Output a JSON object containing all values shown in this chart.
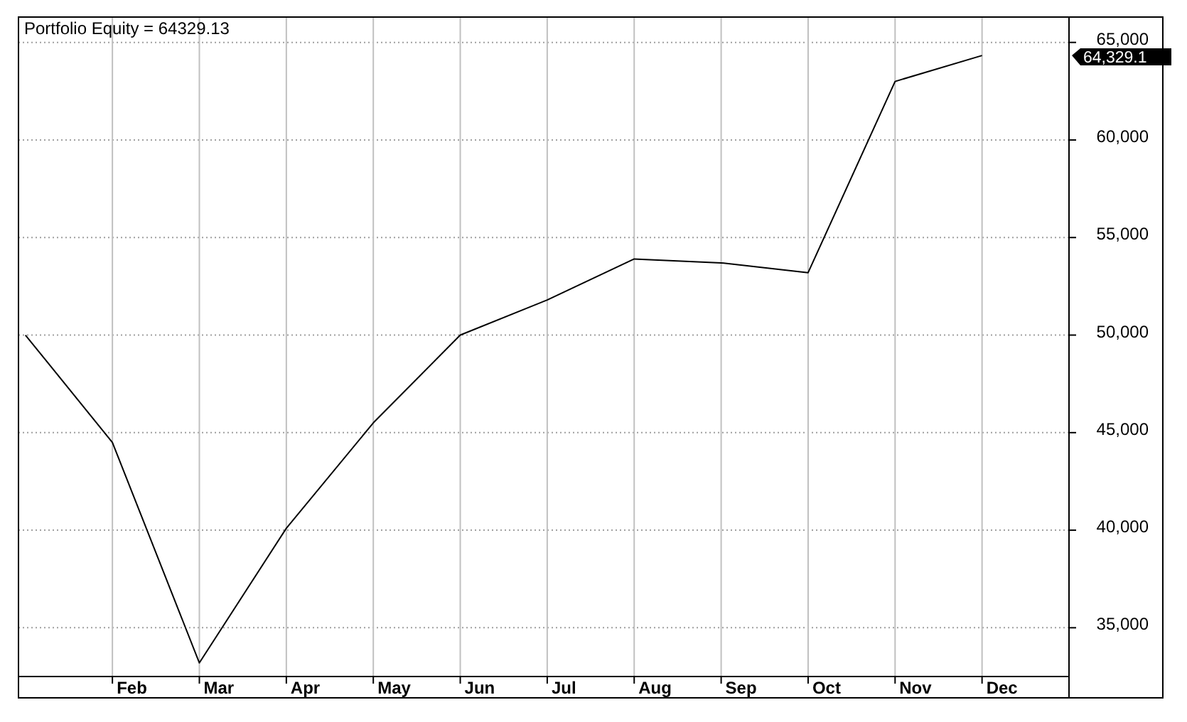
{
  "chart_data": {
    "type": "line",
    "title": "Portfolio Equity = 64329.13",
    "categories": [
      null,
      "Feb",
      "Mar",
      "Apr",
      "May",
      "Jun",
      "Jul",
      "Aug",
      "Sep",
      "Oct",
      "Nov",
      "Dec"
    ],
    "series": [
      {
        "color": "#000000",
        "values": [
          50000,
          44500,
          33200,
          40100,
          45500,
          50000,
          51800,
          53900,
          53700,
          53200,
          63000,
          64329.13
        ]
      }
    ],
    "annotations": [
      "64,329.1"
    ],
    "ylim": [
      32500,
      66300
    ],
    "yticks": [
      {
        "value": 35000,
        "label": "35,000"
      },
      {
        "value": 40000,
        "label": "40,000"
      },
      {
        "value": 45000,
        "label": "45,000"
      },
      {
        "value": 50000,
        "label": "50,000"
      },
      {
        "value": 55000,
        "label": "55,000"
      },
      {
        "value": 60000,
        "label": "60,000"
      },
      {
        "value": 65000,
        "label": "65,000"
      }
    ],
    "grid": true,
    "marker": "none",
    "line_style": "solid"
  }
}
